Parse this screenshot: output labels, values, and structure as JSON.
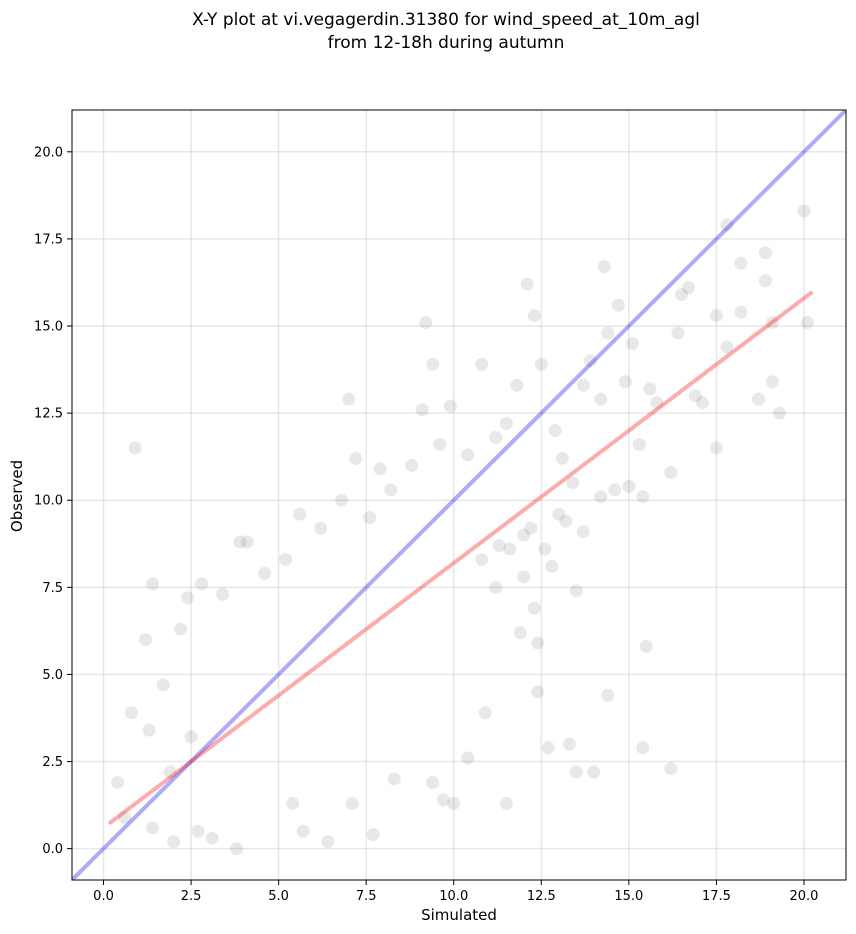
{
  "chart_data": {
    "type": "scatter",
    "title_lines": [
      "X-Y plot at vi.vegagerdin.31380 for wind_speed_at_10m_agl",
      "from 12-18h during autumn"
    ],
    "xlabel": "Simulated",
    "ylabel": "Observed",
    "xlim": [
      -0.9,
      21.2
    ],
    "ylim": [
      -0.9,
      21.2
    ],
    "x_ticks": [
      0.0,
      2.5,
      5.0,
      7.5,
      10.0,
      12.5,
      15.0,
      17.5,
      20.0
    ],
    "y_ticks": [
      0.0,
      2.5,
      5.0,
      7.5,
      10.0,
      12.5,
      15.0,
      17.5,
      20.0
    ],
    "x_tick_labels": [
      "0.0",
      "2.5",
      "5.0",
      "7.5",
      "10.0",
      "12.5",
      "15.0",
      "17.5",
      "20.0"
    ],
    "y_tick_labels": [
      "0.0",
      "2.5",
      "5.0",
      "7.5",
      "10.0",
      "12.5",
      "15.0",
      "17.5",
      "20.0"
    ],
    "grid": true,
    "point_color": "#000000",
    "point_opacity": 0.09,
    "identity_line": {
      "color": "#0000ff",
      "opacity": 0.33,
      "x": [
        -0.9,
        21.2
      ],
      "y": [
        -0.9,
        21.2
      ]
    },
    "fit_line": {
      "color": "#ff0000",
      "opacity": 0.33,
      "x": [
        0.2,
        20.2
      ],
      "y": [
        0.75,
        15.95
      ]
    },
    "points": [
      [
        0.9,
        11.5
      ],
      [
        1.4,
        7.6
      ],
      [
        1.2,
        6.0
      ],
      [
        1.7,
        4.7
      ],
      [
        2.2,
        6.3
      ],
      [
        2.4,
        7.2
      ],
      [
        2.8,
        7.6
      ],
      [
        3.4,
        7.3
      ],
      [
        3.9,
        8.8
      ],
      [
        4.1,
        8.8
      ],
      [
        4.6,
        7.9
      ],
      [
        5.2,
        8.3
      ],
      [
        5.6,
        9.6
      ],
      [
        6.2,
        9.2
      ],
      [
        6.8,
        10.0
      ],
      [
        7.0,
        12.9
      ],
      [
        7.2,
        11.2
      ],
      [
        7.6,
        9.5
      ],
      [
        7.9,
        10.9
      ],
      [
        8.2,
        10.3
      ],
      [
        8.8,
        11.0
      ],
      [
        9.1,
        12.6
      ],
      [
        9.2,
        15.1
      ],
      [
        9.4,
        13.9
      ],
      [
        9.6,
        11.6
      ],
      [
        9.9,
        12.7
      ],
      [
        10.4,
        11.3
      ],
      [
        10.8,
        13.9
      ],
      [
        11.2,
        11.8
      ],
      [
        11.5,
        12.2
      ],
      [
        11.8,
        13.3
      ],
      [
        12.1,
        16.2
      ],
      [
        12.3,
        15.3
      ],
      [
        12.5,
        13.9
      ],
      [
        12.9,
        12.0
      ],
      [
        13.1,
        11.2
      ],
      [
        13.4,
        10.5
      ],
      [
        13.7,
        13.3
      ],
      [
        13.9,
        14.0
      ],
      [
        14.2,
        12.9
      ],
      [
        14.3,
        16.7
      ],
      [
        14.4,
        14.8
      ],
      [
        14.7,
        15.6
      ],
      [
        14.9,
        13.4
      ],
      [
        15.1,
        14.5
      ],
      [
        15.3,
        11.6
      ],
      [
        15.6,
        13.2
      ],
      [
        15.8,
        12.8
      ],
      [
        16.2,
        10.8
      ],
      [
        16.4,
        14.8
      ],
      [
        16.5,
        15.9
      ],
      [
        16.7,
        16.1
      ],
      [
        16.9,
        13.0
      ],
      [
        17.1,
        12.8
      ],
      [
        17.5,
        15.3
      ],
      [
        17.5,
        11.5
      ],
      [
        17.8,
        14.4
      ],
      [
        17.8,
        17.9
      ],
      [
        18.2,
        16.8
      ],
      [
        18.2,
        15.4
      ],
      [
        18.7,
        12.9
      ],
      [
        18.9,
        17.1
      ],
      [
        18.9,
        16.3
      ],
      [
        19.1,
        13.4
      ],
      [
        19.1,
        15.1
      ],
      [
        19.3,
        12.5
      ],
      [
        20.0,
        18.3
      ],
      [
        20.1,
        15.1
      ],
      [
        15.5,
        5.8
      ],
      [
        14.4,
        4.4
      ],
      [
        15.4,
        2.9
      ],
      [
        16.2,
        2.3
      ],
      [
        14.0,
        2.2
      ],
      [
        13.5,
        2.2
      ],
      [
        13.3,
        3.0
      ],
      [
        12.7,
        2.9
      ],
      [
        12.4,
        4.5
      ],
      [
        11.5,
        1.3
      ],
      [
        10.9,
        3.9
      ],
      [
        10.4,
        2.6
      ],
      [
        10.0,
        1.3
      ],
      [
        9.7,
        1.4
      ],
      [
        9.4,
        1.9
      ],
      [
        8.3,
        2.0
      ],
      [
        7.7,
        0.4
      ],
      [
        7.1,
        1.3
      ],
      [
        6.4,
        0.2
      ],
      [
        5.7,
        0.5
      ],
      [
        5.4,
        1.3
      ],
      [
        3.8,
        0.0
      ],
      [
        3.1,
        0.3
      ],
      [
        2.7,
        0.5
      ],
      [
        2.0,
        0.2
      ],
      [
        1.4,
        0.6
      ],
      [
        0.6,
        0.9
      ],
      [
        0.4,
        1.9
      ],
      [
        0.8,
        3.9
      ],
      [
        1.3,
        3.4
      ],
      [
        1.9,
        2.2
      ],
      [
        2.5,
        3.2
      ],
      [
        12.2,
        9.2
      ],
      [
        11.6,
        8.6
      ],
      [
        12.0,
        7.8
      ],
      [
        12.4,
        5.9
      ],
      [
        11.9,
        6.2
      ],
      [
        11.2,
        7.5
      ],
      [
        12.8,
        8.1
      ],
      [
        13.5,
        7.4
      ],
      [
        12.3,
        6.9
      ],
      [
        13.2,
        9.4
      ],
      [
        13.7,
        9.1
      ],
      [
        14.2,
        10.1
      ],
      [
        14.6,
        10.3
      ],
      [
        15.0,
        10.4
      ],
      [
        15.4,
        10.1
      ],
      [
        12.6,
        8.6
      ],
      [
        13.0,
        9.6
      ],
      [
        12.0,
        9.0
      ],
      [
        11.3,
        8.7
      ],
      [
        10.8,
        8.3
      ]
    ]
  }
}
